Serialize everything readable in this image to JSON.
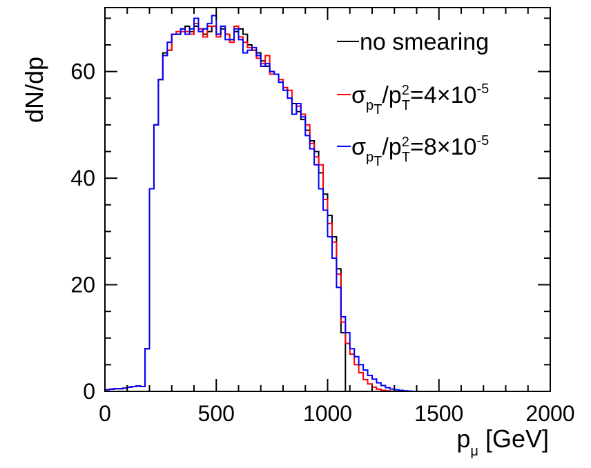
{
  "chart_data": {
    "type": "line",
    "title": "",
    "xlabel": "p",
    "xlabel_sub": "μ",
    "xlabel_unit": " [GeV]",
    "ylabel": "dN/dp",
    "xlim": [
      0,
      2000
    ],
    "ylim": [
      0,
      72
    ],
    "xticks": [
      0,
      500,
      1000,
      1500,
      2000
    ],
    "xtick_labels": [
      "0",
      "500",
      "1000",
      "1500",
      "2000"
    ],
    "yticks": [
      0,
      20,
      40,
      60
    ],
    "ytick_labels": [
      "0",
      "20",
      "40",
      "60"
    ],
    "grid": false,
    "legend_position": "top-right",
    "bin_width": 20,
    "series": [
      {
        "name": "no smearing",
        "color": "#000000",
        "legend": {
          "prefix": "no smearing"
        },
        "values": [
          0.3,
          0.4,
          0.5,
          0.5,
          0.6,
          0.8,
          0.9,
          1.0,
          0.9,
          8.0,
          38,
          50,
          58.5,
          63.5,
          64,
          67,
          67,
          68,
          68.5,
          67.5,
          68.5,
          68,
          67,
          67.5,
          68.5,
          67,
          68,
          67,
          66,
          67.5,
          68,
          67,
          65,
          64,
          63.5,
          62,
          61,
          60,
          59.5,
          58,
          57,
          55,
          54,
          52.5,
          51,
          49,
          47,
          45,
          41,
          37,
          33,
          29,
          23,
          11,
          0,
          0,
          0,
          0,
          0,
          0,
          0,
          0,
          0,
          0,
          0,
          0,
          0,
          0,
          0,
          0,
          0,
          0,
          0,
          0,
          0,
          0,
          0,
          0,
          0,
          0,
          0,
          0,
          0,
          0,
          0,
          0,
          0,
          0,
          0,
          0,
          0,
          0,
          0,
          0,
          0,
          0,
          0,
          0,
          0,
          0
        ]
      },
      {
        "name": "σpT/pT2=4×10-5",
        "color": "#ff0000",
        "legend": {
          "sigma": "σ",
          "sub1": "p",
          "sub2": "T",
          "mid": "/p",
          "sup": "2",
          "sub3": "T",
          "eq": "=4×10",
          "exp": "-5"
        },
        "values": [
          0.3,
          0.4,
          0.5,
          0.5,
          0.6,
          0.8,
          0.9,
          1.0,
          0.9,
          8.0,
          38,
          50,
          58.5,
          63,
          64,
          67,
          67.5,
          67.5,
          67.5,
          67,
          69,
          68,
          66.5,
          68.5,
          68.5,
          66.5,
          68.5,
          67,
          65.5,
          68.5,
          66.5,
          65.5,
          64.5,
          64,
          62.5,
          61.5,
          63,
          59.5,
          59.5,
          58.5,
          57,
          56.5,
          52,
          53.5,
          52,
          50,
          46.5,
          44,
          42.5,
          36,
          31.5,
          28,
          22,
          13,
          9,
          7,
          5,
          3.5,
          2.2,
          1.4,
          0.8,
          0.4,
          0.2,
          0.1,
          0.05,
          0,
          0,
          0,
          0,
          0,
          0,
          0,
          0,
          0,
          0,
          0,
          0,
          0,
          0,
          0,
          0,
          0,
          0,
          0,
          0,
          0,
          0,
          0,
          0,
          0,
          0,
          0,
          0,
          0,
          0,
          0,
          0,
          0,
          0,
          0
        ]
      },
      {
        "name": "σpT/pT2=8×10-5",
        "color": "#0000ff",
        "legend": {
          "sigma": "σ",
          "sub1": "p",
          "sub2": "T",
          "mid": "/p",
          "sup": "2",
          "sub3": "T",
          "eq": "=8×10",
          "exp": "-5"
        },
        "values": [
          0.3,
          0.4,
          0.5,
          0.5,
          0.6,
          0.8,
          0.9,
          1.0,
          0.9,
          8.0,
          38,
          50,
          58.5,
          63,
          65.5,
          67,
          67,
          68,
          67,
          68,
          70,
          67.5,
          68,
          69,
          70.5,
          67,
          68.5,
          66,
          66,
          68,
          66,
          63.5,
          64,
          64.5,
          63,
          61,
          61.5,
          60,
          59.5,
          58,
          56.5,
          55,
          52,
          54,
          51.5,
          48,
          45.5,
          42.5,
          38,
          34,
          29,
          25,
          19.5,
          14,
          11,
          8,
          6.5,
          5,
          4,
          3,
          2.3,
          1.6,
          1.1,
          0.7,
          0.45,
          0.3,
          0.2,
          0.1,
          0.05,
          0,
          0,
          0,
          0,
          0,
          0,
          0,
          0,
          0,
          0,
          0,
          0,
          0,
          0,
          0,
          0,
          0,
          0,
          0,
          0,
          0,
          0,
          0,
          0,
          0,
          0,
          0,
          0,
          0,
          0,
          0
        ]
      }
    ]
  }
}
